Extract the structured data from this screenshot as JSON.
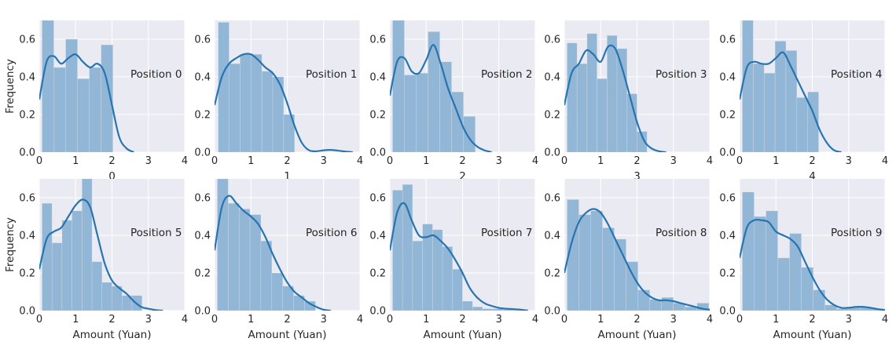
{
  "colors": {
    "panel_bg": "#eaeaf2",
    "grid": "#ffffff",
    "bar_fill": "#92b6d5",
    "kde_line": "#2774b0",
    "text": "#262626"
  },
  "chart_data": [
    {
      "type": "bar+line",
      "annotation": "Position 0",
      "xlabel": "0",
      "ylabel": "Frequency",
      "xlim": [
        0,
        4
      ],
      "ylim": [
        0,
        0.7
      ],
      "xticks": [
        "0",
        "1",
        "2",
        "3",
        "4"
      ],
      "yticks": [
        "0.0",
        "0.2",
        "0.4",
        "0.6"
      ],
      "grid": true,
      "hist": {
        "bin_edges": [
          0.075,
          0.4,
          0.725,
          1.05,
          1.375,
          1.7,
          2.025
        ],
        "values": [
          0.72,
          0.45,
          0.6,
          0.39,
          0.45,
          0.57
        ]
      },
      "kde": {
        "x": [
          0.0,
          0.2,
          0.4,
          0.6,
          0.8,
          1.0,
          1.2,
          1.4,
          1.6,
          1.8,
          2.0,
          2.2,
          2.4,
          2.6
        ],
        "y": [
          0.28,
          0.48,
          0.51,
          0.47,
          0.5,
          0.52,
          0.48,
          0.45,
          0.47,
          0.42,
          0.25,
          0.08,
          0.02,
          0.0
        ]
      }
    },
    {
      "type": "bar+line",
      "annotation": "Position 1",
      "xlabel": "1",
      "ylabel": "",
      "xlim": [
        0,
        4
      ],
      "ylim": [
        0,
        0.7
      ],
      "xticks": [
        "0",
        "1",
        "2",
        "3",
        "4"
      ],
      "yticks": [
        "0.0",
        "0.2",
        "0.4",
        "0.6"
      ],
      "grid": true,
      "hist": {
        "bin_edges": [
          0.1,
          0.4,
          0.7,
          1.0,
          1.3,
          1.6,
          1.9,
          2.2
        ],
        "values": [
          0.69,
          0.47,
          0.52,
          0.52,
          0.43,
          0.4,
          0.2
        ]
      },
      "kde": {
        "x": [
          0.0,
          0.2,
          0.4,
          0.6,
          0.8,
          1.0,
          1.2,
          1.4,
          1.6,
          1.8,
          2.0,
          2.2,
          2.4,
          2.6,
          2.8,
          3.0,
          3.2,
          3.4,
          3.6,
          3.8
        ],
        "y": [
          0.25,
          0.4,
          0.47,
          0.5,
          0.52,
          0.52,
          0.49,
          0.45,
          0.42,
          0.36,
          0.26,
          0.14,
          0.05,
          0.01,
          0.005,
          0.01,
          0.012,
          0.008,
          0.003,
          0.0
        ]
      }
    },
    {
      "type": "bar+line",
      "annotation": "Position 2",
      "xlabel": "2",
      "ylabel": "",
      "xlim": [
        0,
        4
      ],
      "ylim": [
        0,
        0.7
      ],
      "xticks": [
        "0",
        "1",
        "2",
        "3",
        "4"
      ],
      "yticks": [
        "0.0",
        "0.2",
        "0.4",
        "0.6"
      ],
      "grid": true,
      "hist": {
        "bin_edges": [
          0.075,
          0.4,
          0.725,
          1.05,
          1.375,
          1.7,
          2.025,
          2.35
        ],
        "values": [
          0.7,
          0.41,
          0.42,
          0.64,
          0.48,
          0.32,
          0.19
        ]
      },
      "kde": {
        "x": [
          0.0,
          0.2,
          0.4,
          0.6,
          0.8,
          1.0,
          1.2,
          1.4,
          1.6,
          1.8,
          2.0,
          2.2,
          2.4,
          2.6,
          2.8
        ],
        "y": [
          0.3,
          0.48,
          0.5,
          0.43,
          0.42,
          0.49,
          0.57,
          0.47,
          0.34,
          0.24,
          0.14,
          0.07,
          0.03,
          0.01,
          0.0
        ]
      }
    },
    {
      "type": "bar+line",
      "annotation": "Position 3",
      "xlabel": "3",
      "ylabel": "",
      "xlim": [
        0,
        4
      ],
      "ylim": [
        0,
        0.7
      ],
      "xticks": [
        "0",
        "1",
        "2",
        "3",
        "4"
      ],
      "yticks": [
        "0.0",
        "0.2",
        "0.4",
        "0.6"
      ],
      "grid": true,
      "hist": {
        "bin_edges": [
          0.075,
          0.35,
          0.625,
          0.9,
          1.175,
          1.45,
          1.725,
          2.0,
          2.275
        ],
        "values": [
          0.58,
          0.47,
          0.63,
          0.39,
          0.62,
          0.55,
          0.31,
          0.11
        ]
      },
      "kde": {
        "x": [
          0.0,
          0.2,
          0.4,
          0.6,
          0.8,
          1.0,
          1.2,
          1.4,
          1.6,
          1.8,
          2.0,
          2.2,
          2.4,
          2.6,
          2.8
        ],
        "y": [
          0.25,
          0.42,
          0.47,
          0.54,
          0.52,
          0.48,
          0.56,
          0.55,
          0.44,
          0.3,
          0.16,
          0.06,
          0.02,
          0.005,
          0.0
        ]
      }
    },
    {
      "type": "bar+line",
      "annotation": "Position 4",
      "xlabel": "4",
      "ylabel": "",
      "xlim": [
        0,
        4
      ],
      "ylim": [
        0,
        0.7
      ],
      "xticks": [
        "0",
        "1",
        "2",
        "3",
        "4"
      ],
      "yticks": [
        "0.0",
        "0.2",
        "0.4",
        "0.6"
      ],
      "grid": true,
      "hist": {
        "bin_edges": [
          0.075,
          0.375,
          0.675,
          0.975,
          1.275,
          1.575,
          1.875,
          2.175
        ],
        "values": [
          0.72,
          0.47,
          0.42,
          0.59,
          0.54,
          0.29,
          0.32
        ]
      },
      "kde": {
        "x": [
          0.0,
          0.2,
          0.4,
          0.6,
          0.8,
          1.0,
          1.2,
          1.4,
          1.6,
          1.8,
          2.0,
          2.2,
          2.4,
          2.6,
          2.8
        ],
        "y": [
          0.28,
          0.45,
          0.48,
          0.47,
          0.47,
          0.5,
          0.53,
          0.46,
          0.38,
          0.3,
          0.22,
          0.12,
          0.05,
          0.01,
          0.0
        ]
      }
    },
    {
      "type": "bar+line",
      "annotation": "Position 5",
      "xlabel": "Amount (Yuan)",
      "ylabel": "Frequency",
      "xlim": [
        0,
        4
      ],
      "ylim": [
        0,
        0.7
      ],
      "xticks": [
        "0",
        "1",
        "2",
        "3",
        "4"
      ],
      "yticks": [
        "0.0",
        "0.2",
        "0.4",
        "0.6"
      ],
      "grid": true,
      "hist": {
        "bin_edges": [
          0.075,
          0.35,
          0.625,
          0.9,
          1.175,
          1.45,
          1.725,
          2.0,
          2.275,
          2.55,
          2.825
        ],
        "values": [
          0.57,
          0.36,
          0.48,
          0.53,
          0.7,
          0.26,
          0.15,
          0.13,
          0.08,
          0.08
        ]
      },
      "kde": {
        "x": [
          0.0,
          0.2,
          0.4,
          0.6,
          0.8,
          1.0,
          1.2,
          1.4,
          1.6,
          1.8,
          2.0,
          2.2,
          2.4,
          2.6,
          2.8,
          3.0,
          3.2,
          3.4
        ],
        "y": [
          0.22,
          0.38,
          0.42,
          0.44,
          0.5,
          0.56,
          0.59,
          0.55,
          0.4,
          0.25,
          0.16,
          0.12,
          0.09,
          0.05,
          0.02,
          0.01,
          0.003,
          0.0
        ]
      }
    },
    {
      "type": "bar+line",
      "annotation": "Position 6",
      "xlabel": "Amount (Yuan)",
      "ylabel": "",
      "xlim": [
        0,
        4
      ],
      "ylim": [
        0,
        0.7
      ],
      "xticks": [
        "0",
        "1",
        "2",
        "3",
        "4"
      ],
      "yticks": [
        "0.0",
        "0.2",
        "0.4",
        "0.6"
      ],
      "grid": true,
      "hist": {
        "bin_edges": [
          0.075,
          0.375,
          0.675,
          0.975,
          1.275,
          1.575,
          1.875,
          2.175,
          2.475,
          2.775
        ],
        "values": [
          0.71,
          0.57,
          0.54,
          0.51,
          0.37,
          0.2,
          0.13,
          0.08,
          0.05
        ]
      },
      "kde": {
        "x": [
          0.0,
          0.2,
          0.4,
          0.6,
          0.8,
          1.0,
          1.2,
          1.4,
          1.6,
          1.8,
          2.0,
          2.2,
          2.4,
          2.6,
          2.8,
          3.0,
          3.2
        ],
        "y": [
          0.32,
          0.55,
          0.61,
          0.57,
          0.53,
          0.5,
          0.46,
          0.39,
          0.3,
          0.22,
          0.15,
          0.1,
          0.07,
          0.04,
          0.02,
          0.005,
          0.0
        ]
      }
    },
    {
      "type": "bar+line",
      "annotation": "Position 7",
      "xlabel": "Amount (Yuan)",
      "ylabel": "",
      "xlim": [
        0,
        4
      ],
      "ylim": [
        0,
        0.7
      ],
      "xticks": [
        "0",
        "1",
        "2",
        "3",
        "4"
      ],
      "yticks": [
        "0.0",
        "0.2",
        "0.4",
        "0.6"
      ],
      "grid": true,
      "hist": {
        "bin_edges": [
          0.075,
          0.35,
          0.625,
          0.9,
          1.175,
          1.45,
          1.725,
          2.0,
          2.275,
          2.55,
          2.825,
          3.1,
          3.375,
          3.65
        ],
        "values": [
          0.64,
          0.67,
          0.37,
          0.46,
          0.43,
          0.34,
          0.22,
          0.05,
          0.02,
          0.01,
          0.01,
          0.005,
          0.005
        ]
      },
      "kde": {
        "x": [
          0.0,
          0.2,
          0.4,
          0.6,
          0.8,
          1.0,
          1.2,
          1.4,
          1.6,
          1.8,
          2.0,
          2.2,
          2.4,
          2.6,
          2.8,
          3.0,
          3.2,
          3.4,
          3.6,
          3.8
        ],
        "y": [
          0.32,
          0.52,
          0.57,
          0.48,
          0.4,
          0.39,
          0.4,
          0.37,
          0.33,
          0.27,
          0.2,
          0.12,
          0.07,
          0.04,
          0.025,
          0.015,
          0.01,
          0.008,
          0.005,
          0.0
        ]
      }
    },
    {
      "type": "bar+line",
      "annotation": "Position 8",
      "xlabel": "Amount (Yuan)",
      "ylabel": "",
      "xlim": [
        0,
        4
      ],
      "ylim": [
        0,
        0.7
      ],
      "xticks": [
        "0",
        "1",
        "2",
        "3",
        "4"
      ],
      "yticks": [
        "0.0",
        "0.2",
        "0.4",
        "0.6"
      ],
      "grid": true,
      "hist": {
        "bin_edges": [
          0.075,
          0.4,
          0.725,
          1.05,
          1.375,
          1.7,
          2.025,
          2.35,
          2.675,
          3.0,
          3.325,
          3.65,
          3.975
        ],
        "values": [
          0.59,
          0.51,
          0.53,
          0.44,
          0.38,
          0.26,
          0.11,
          0.06,
          0.07,
          0.04,
          0.02,
          0.04
        ]
      },
      "kde": {
        "x": [
          0.0,
          0.2,
          0.4,
          0.6,
          0.8,
          1.0,
          1.2,
          1.4,
          1.6,
          1.8,
          2.0,
          2.2,
          2.4,
          2.6,
          2.8,
          3.0,
          3.2,
          3.4,
          3.6,
          3.8,
          4.0
        ],
        "y": [
          0.2,
          0.36,
          0.47,
          0.52,
          0.54,
          0.52,
          0.46,
          0.38,
          0.3,
          0.22,
          0.15,
          0.1,
          0.07,
          0.055,
          0.055,
          0.05,
          0.04,
          0.03,
          0.02,
          0.01,
          0.005
        ]
      }
    },
    {
      "type": "bar+line",
      "annotation": "Position 9",
      "xlabel": "Amount (Yuan)",
      "ylabel": "",
      "xlim": [
        0,
        4
      ],
      "ylim": [
        0,
        0.7
      ],
      "xticks": [
        "0",
        "1",
        "2",
        "3",
        "4"
      ],
      "yticks": [
        "0.0",
        "0.2",
        "0.4",
        "0.6"
      ],
      "grid": true,
      "hist": {
        "bin_edges": [
          0.075,
          0.4,
          0.725,
          1.05,
          1.375,
          1.7,
          2.025,
          2.35,
          2.675,
          3.0,
          3.325,
          3.65,
          3.975
        ],
        "values": [
          0.63,
          0.5,
          0.53,
          0.28,
          0.41,
          0.23,
          0.11,
          0.03,
          0.01,
          0.02,
          0.02,
          0.01
        ]
      },
      "kde": {
        "x": [
          0.0,
          0.2,
          0.4,
          0.6,
          0.8,
          1.0,
          1.2,
          1.4,
          1.6,
          1.8,
          2.0,
          2.2,
          2.4,
          2.6,
          2.8,
          3.0,
          3.2,
          3.4,
          3.6,
          3.8,
          4.0
        ],
        "y": [
          0.28,
          0.44,
          0.48,
          0.48,
          0.47,
          0.42,
          0.4,
          0.38,
          0.34,
          0.26,
          0.18,
          0.11,
          0.06,
          0.03,
          0.015,
          0.015,
          0.02,
          0.02,
          0.015,
          0.008,
          0.003
        ]
      }
    }
  ]
}
